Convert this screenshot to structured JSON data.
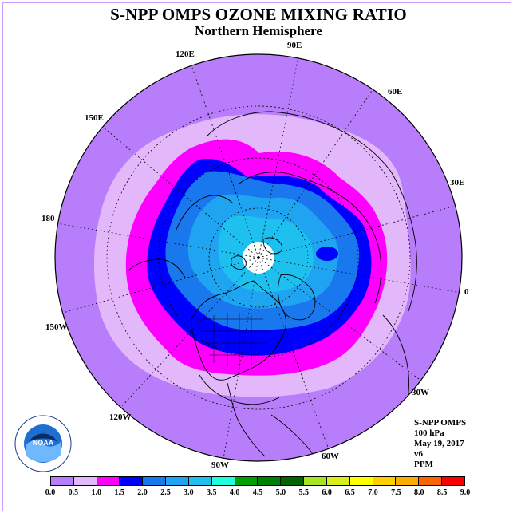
{
  "header": {
    "title": "S-NPP OMPS OZONE MIXING RATIO",
    "subtitle": "Northern Hemisphere"
  },
  "longitude_labels": [
    "120E",
    "90E",
    "60E",
    "150E",
    "30E",
    "180",
    "0",
    "150W",
    "30W",
    "120W",
    "60W",
    "90W"
  ],
  "info_block": {
    "instrument": "S-NPP OMPS",
    "level": "100 hPa",
    "date": "May 19, 2017",
    "version": "v6",
    "units": "PPM"
  },
  "colorbar": {
    "ticks": [
      "0.0",
      "0.5",
      "1.0",
      "1.5",
      "2.0",
      "2.5",
      "3.0",
      "3.5",
      "4.0",
      "4.5",
      "5.0",
      "5.5",
      "6.0",
      "6.5",
      "7.0",
      "7.5",
      "8.0",
      "8.5",
      "9.0"
    ],
    "colors": [
      "#b87dfb",
      "#e3b8fb",
      "#ff00ff",
      "#0000ff",
      "#1a78ee",
      "#1ea4f0",
      "#1ec0f0",
      "#20ffdd",
      "#00a000",
      "#008000",
      "#006400",
      "#a6e61e",
      "#d5f01e",
      "#ffff00",
      "#fbd000",
      "#fbac00",
      "#fb6400",
      "#fb0000",
      "#8b5a2b"
    ]
  },
  "logo": {
    "text": "NOAA",
    "ring_text": "NATIONAL OCEANIC AND ATMOSPHERIC ADMINISTRATION · U.S. DEPARTMENT OF COMMERCE"
  }
}
